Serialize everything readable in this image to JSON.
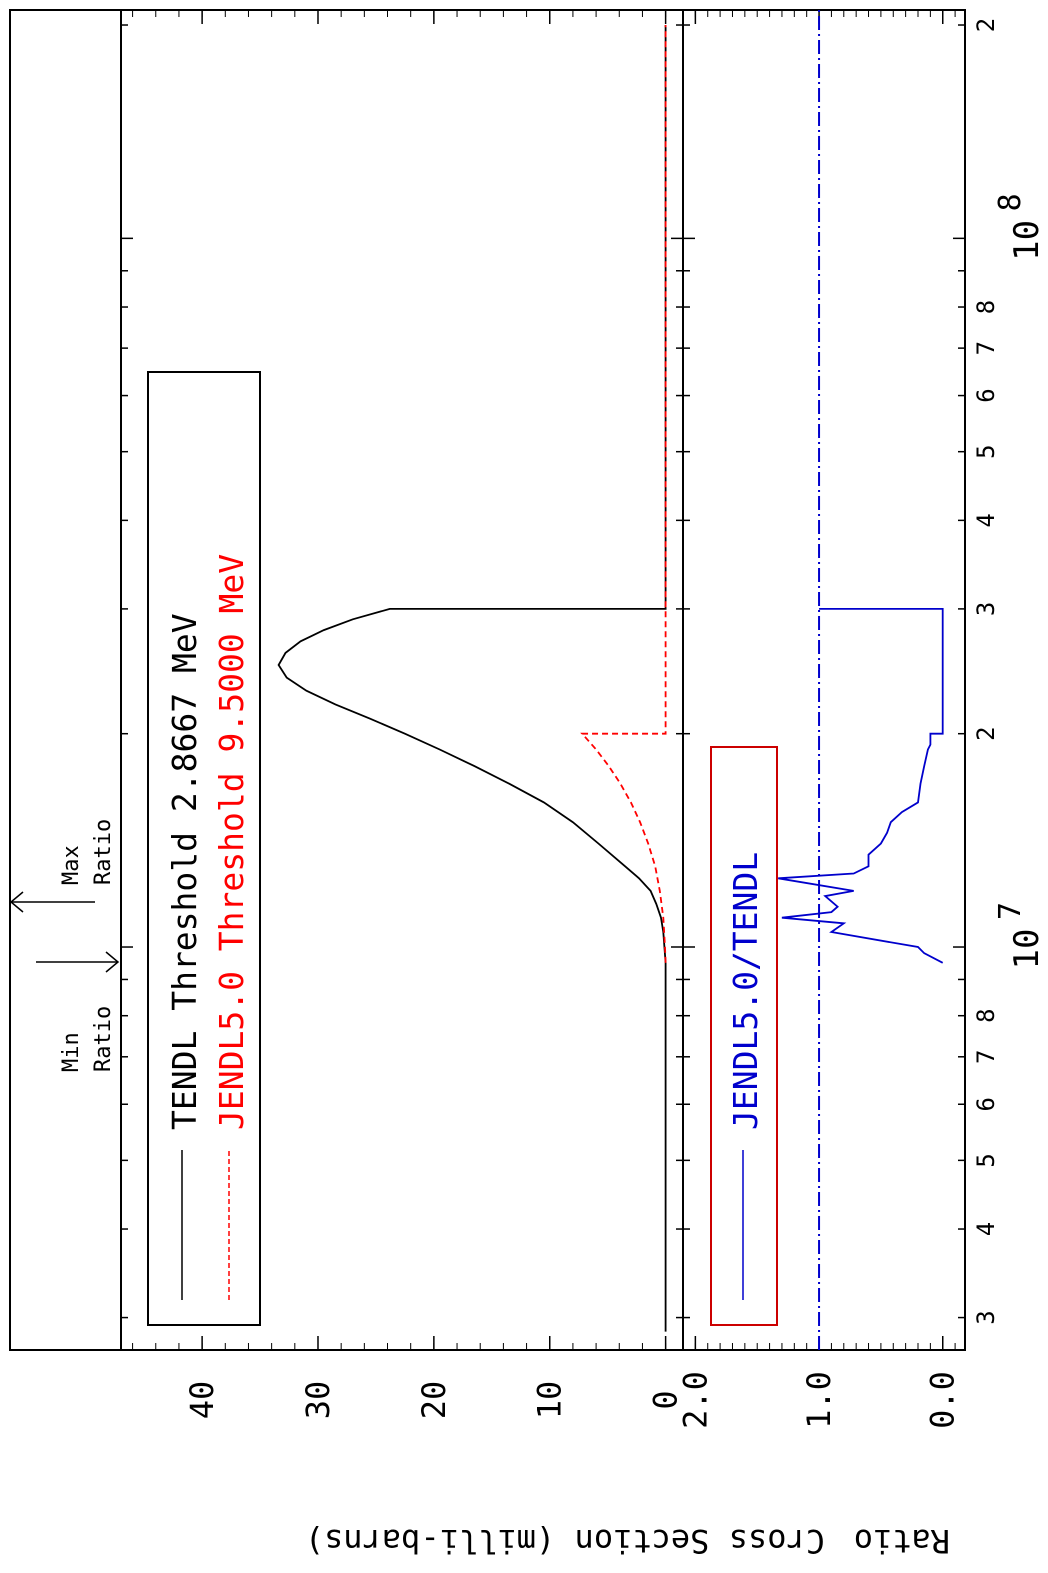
{
  "chart_data": {
    "type": "line",
    "orientation": "rotated 90 degrees clockwise",
    "xlabel": "",
    "x_scale": "log",
    "xlim": [
      2700000,
      210000000
    ],
    "x_tick_labels": [
      {
        "value": 3000000,
        "label": "3"
      },
      {
        "value": 4000000,
        "label": "4"
      },
      {
        "value": 5000000,
        "label": "5"
      },
      {
        "value": 6000000,
        "label": "6"
      },
      {
        "value": 7000000,
        "label": "7"
      },
      {
        "value": 8000000,
        "label": "8"
      },
      {
        "value": 20000000,
        "label": "2"
      },
      {
        "value": 30000000,
        "label": "3"
      },
      {
        "value": 40000000,
        "label": "4"
      },
      {
        "value": 50000000,
        "label": "5"
      },
      {
        "value": 60000000,
        "label": "6"
      },
      {
        "value": 70000000,
        "label": "7"
      },
      {
        "value": 80000000,
        "label": "8"
      },
      {
        "value": 200000000,
        "label": "2"
      }
    ],
    "decade_labels": [
      {
        "value": 10000000,
        "base": "10",
        "exp": "7"
      },
      {
        "value": 100000000,
        "base": "10",
        "exp": "8"
      }
    ],
    "ylabel": "Ratio",
    "ylabel_cross": "Cross Section (milli-barns)",
    "panels": [
      {
        "name": "cross-section",
        "ylim": [
          -1.5,
          47
        ],
        "y_ticks": [
          0,
          10,
          20,
          30,
          40
        ],
        "y_tick_labels": [
          "0",
          "10",
          "20",
          "30",
          "40"
        ],
        "legend": {
          "placement": "upper-left",
          "entries": [
            {
              "label": "TENDL Threshold 2.8667 MeV",
              "color": "#000000",
              "dash": "solid"
            },
            {
              "label": "JENDL5.0 Threshold 9.5000 MeV",
              "color": "#ff0000",
              "dash": "dashed"
            }
          ]
        },
        "series": [
          {
            "name": "TENDL",
            "color": "#000000",
            "dash": "solid",
            "x": [
              2866700,
              9500000,
              10500000,
              11000000,
              11500000,
              12000000,
              12500000,
              13000000,
              14000000,
              15000000,
              16000000,
              17000000,
              18000000,
              19000000,
              20000000,
              21000000,
              22000000,
              23000000,
              24000000,
              25000000,
              26000000,
              27000000,
              28000000,
              29000000,
              30000000,
              30000001,
              200000000
            ],
            "y": [
              0,
              0,
              0.2,
              0.4,
              0.8,
              1.3,
              2.3,
              3.5,
              5.8,
              8.0,
              10.5,
              13.5,
              16.5,
              19.5,
              22.5,
              25.5,
              28.5,
              31,
              32.7,
              33.4,
              32.8,
              31.5,
              29.5,
              27.0,
              23.8,
              0,
              0
            ]
          },
          {
            "name": "JENDL5.0",
            "color": "#ff0000",
            "dash": "dashed",
            "x": [
              9500000,
              10000000,
              11000000,
              12000000,
              13000000,
              14000000,
              15000000,
              16000000,
              17000000,
              18000000,
              19000000,
              20000000,
              20000001,
              200000000
            ],
            "y": [
              0,
              0.05,
              0.2,
              0.5,
              0.9,
              1.5,
              2.2,
              3.0,
              3.9,
              4.9,
              6.0,
              7.2,
              0,
              0
            ]
          }
        ]
      },
      {
        "name": "ratio",
        "ylim": [
          -0.18,
          2.1
        ],
        "y_ticks": [
          0,
          1,
          2
        ],
        "y_tick_labels": [
          "0.0",
          "1.0",
          "2.0"
        ],
        "legend": {
          "placement": "upper-left",
          "entries": [
            {
              "label": "JENDL5.0/TENDL",
              "color": "#0000cc",
              "dash": "solid"
            }
          ]
        },
        "reference_line": {
          "y": 1.0,
          "color": "#0000cc",
          "dash": "dash-dot"
        },
        "series": [
          {
            "name": "JENDL5.0/TENDL",
            "color": "#0000cc",
            "dash": "solid",
            "x": [
              9500000,
              9800000,
              10000000,
              10500000,
              10800000,
              11000000,
              11200000,
              11400000,
              11800000,
              12000000,
              12500000,
              12700000,
              13000000,
              13500000,
              14000000,
              14500000,
              15000000,
              15500000,
              16000000,
              17000000,
              18000000,
              19000000,
              19300000,
              20000000,
              20000001,
              30000000,
              30000001
            ],
            "y": [
              0,
              0.15,
              0.2,
              0.9,
              0.8,
              1.3,
              0.9,
              0.85,
              0.95,
              0.72,
              1.33,
              0.72,
              0.6,
              0.6,
              0.5,
              0.45,
              0.42,
              0.33,
              0.2,
              0.18,
              0.15,
              0.12,
              0.1,
              0.1,
              0,
              0,
              1.0
            ]
          }
        ]
      }
    ],
    "annotations": [
      {
        "label": "Min Ratio",
        "lines": [
          "Min",
          "Ratio"
        ],
        "x": 9500000
      },
      {
        "label": "Max Ratio",
        "lines": [
          "Max",
          "Ratio"
        ],
        "x": 11000000
      }
    ],
    "grid": false
  }
}
